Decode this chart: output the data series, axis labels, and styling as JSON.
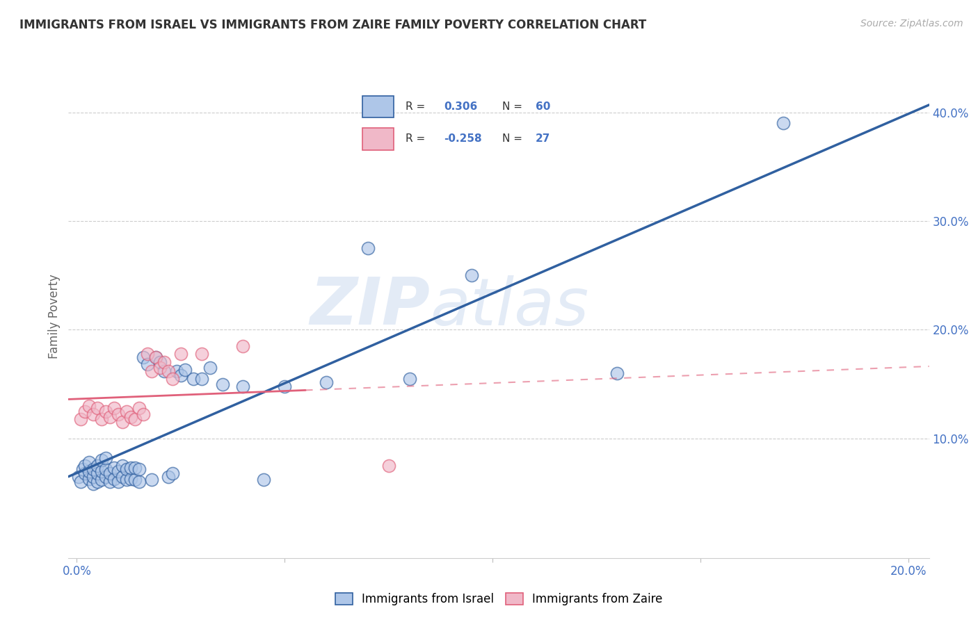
{
  "title": "IMMIGRANTS FROM ISRAEL VS IMMIGRANTS FROM ZAIRE FAMILY POVERTY CORRELATION CHART",
  "source": "Source: ZipAtlas.com",
  "xlabel": "",
  "ylabel": "Family Poverty",
  "watermark_zip": "ZIP",
  "watermark_atlas": "atlas",
  "legend_label_1": "Immigrants from Israel",
  "legend_label_2": "Immigrants from Zaire",
  "R1": 0.306,
  "N1": 60,
  "R2": -0.258,
  "N2": 27,
  "israel_color": "#aec6e8",
  "zaire_color": "#f0b8c8",
  "israel_line_color": "#3060a0",
  "zaire_line_color": "#e0607a",
  "xlim": [
    -0.002,
    0.205
  ],
  "ylim": [
    -0.01,
    0.435
  ],
  "xtick_left": 0.0,
  "xtick_right": 0.2,
  "ytick_positions": [
    0.1,
    0.2,
    0.3,
    0.4
  ],
  "ytick_labels": [
    "10.0%",
    "20.0%",
    "30.0%",
    "40.0%"
  ],
  "israel_x": [
    0.0005,
    0.001,
    0.0015,
    0.002,
    0.002,
    0.003,
    0.003,
    0.003,
    0.004,
    0.004,
    0.004,
    0.005,
    0.005,
    0.005,
    0.006,
    0.006,
    0.006,
    0.007,
    0.007,
    0.007,
    0.008,
    0.008,
    0.009,
    0.009,
    0.01,
    0.01,
    0.011,
    0.011,
    0.012,
    0.012,
    0.013,
    0.013,
    0.014,
    0.014,
    0.015,
    0.015,
    0.016,
    0.017,
    0.018,
    0.019,
    0.02,
    0.021,
    0.022,
    0.023,
    0.024,
    0.025,
    0.026,
    0.028,
    0.03,
    0.032,
    0.035,
    0.04,
    0.045,
    0.05,
    0.06,
    0.07,
    0.08,
    0.095,
    0.13,
    0.17
  ],
  "israel_y": [
    0.065,
    0.06,
    0.072,
    0.068,
    0.075,
    0.063,
    0.07,
    0.078,
    0.058,
    0.065,
    0.072,
    0.06,
    0.068,
    0.075,
    0.062,
    0.07,
    0.08,
    0.065,
    0.072,
    0.082,
    0.06,
    0.068,
    0.063,
    0.073,
    0.06,
    0.07,
    0.065,
    0.075,
    0.062,
    0.072,
    0.063,
    0.073,
    0.062,
    0.073,
    0.06,
    0.072,
    0.175,
    0.168,
    0.062,
    0.175,
    0.17,
    0.162,
    0.065,
    0.068,
    0.162,
    0.158,
    0.163,
    0.155,
    0.155,
    0.165,
    0.15,
    0.148,
    0.062,
    0.148,
    0.152,
    0.275,
    0.155,
    0.25,
    0.16,
    0.39
  ],
  "zaire_x": [
    0.001,
    0.002,
    0.003,
    0.004,
    0.005,
    0.006,
    0.007,
    0.008,
    0.009,
    0.01,
    0.011,
    0.012,
    0.013,
    0.014,
    0.015,
    0.016,
    0.017,
    0.018,
    0.019,
    0.02,
    0.021,
    0.022,
    0.023,
    0.025,
    0.03,
    0.04,
    0.075
  ],
  "zaire_y": [
    0.118,
    0.125,
    0.13,
    0.122,
    0.128,
    0.118,
    0.125,
    0.12,
    0.128,
    0.122,
    0.115,
    0.125,
    0.12,
    0.118,
    0.128,
    0.122,
    0.178,
    0.162,
    0.175,
    0.165,
    0.17,
    0.162,
    0.155,
    0.178,
    0.178,
    0.185,
    0.075
  ],
  "background_color": "#ffffff",
  "grid_color": "#cccccc",
  "zaire_dashed_color": "#f0b8c8"
}
